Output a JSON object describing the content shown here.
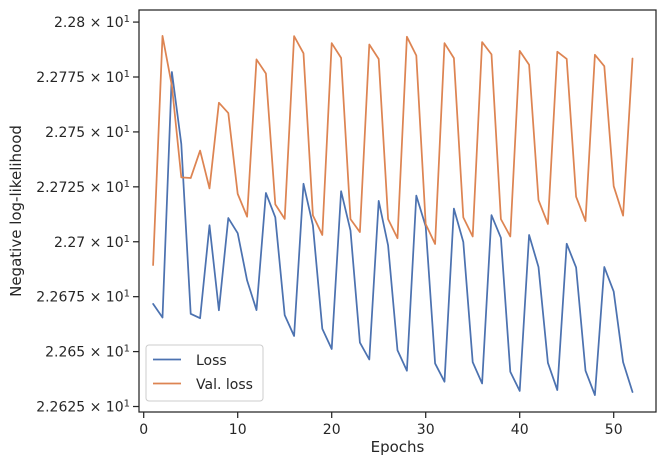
{
  "chart_data": {
    "type": "line",
    "title": "",
    "xlabel": "Epochs",
    "ylabel": "Negative log-likelihood",
    "xlim": [
      -0.5,
      54.5
    ],
    "ylim": [
      22.6225,
      22.8055
    ],
    "grid": false,
    "legend_position": "lower-left",
    "x_ticks": [
      0,
      10,
      20,
      30,
      40,
      50
    ],
    "x_tick_labels": [
      "0",
      "10",
      "20",
      "30",
      "40",
      "50"
    ],
    "y_ticks": [
      22.625,
      22.65,
      22.675,
      22.7,
      22.725,
      22.75,
      22.775,
      22.8
    ],
    "y_tick_labels": [
      {
        "mantissa": "2.2625",
        "base": "10",
        "exp": "1"
      },
      {
        "mantissa": "2.265",
        "base": "10",
        "exp": "1"
      },
      {
        "mantissa": "2.2675",
        "base": "10",
        "exp": "1"
      },
      {
        "mantissa": "2.27",
        "base": "10",
        "exp": "1"
      },
      {
        "mantissa": "2.2725",
        "base": "10",
        "exp": "1"
      },
      {
        "mantissa": "2.275",
        "base": "10",
        "exp": "1"
      },
      {
        "mantissa": "2.2775",
        "base": "10",
        "exp": "1"
      },
      {
        "mantissa": "2.28",
        "base": "10",
        "exp": "1"
      }
    ],
    "x": [
      1,
      2,
      3,
      4,
      5,
      6,
      7,
      8,
      9,
      10,
      11,
      12,
      13,
      14,
      15,
      16,
      17,
      18,
      19,
      20,
      21,
      22,
      23,
      24,
      25,
      26,
      27,
      28,
      29,
      30,
      31,
      32,
      33,
      34,
      35,
      36,
      37,
      38,
      39,
      40,
      41,
      42,
      43,
      44,
      45,
      46,
      47,
      48,
      49,
      50,
      51,
      52
    ],
    "series": [
      {
        "name": "Loss",
        "color": "#4c72b0",
        "values": [
          22.6717,
          22.6655,
          22.7773,
          22.7445,
          22.6672,
          22.6652,
          22.7075,
          22.6688,
          22.7108,
          22.7039,
          22.6824,
          22.6689,
          22.7222,
          22.7111,
          22.6666,
          22.6571,
          22.7264,
          22.7075,
          22.6604,
          22.6512,
          22.723,
          22.7051,
          22.6541,
          22.6464,
          22.7186,
          22.6983,
          22.6506,
          22.6413,
          22.721,
          22.707,
          22.6446,
          22.6363,
          22.7151,
          22.6999,
          22.6452,
          22.6355,
          22.7121,
          22.7018,
          22.6408,
          22.6321,
          22.7031,
          22.6885,
          22.6449,
          22.6325,
          22.6991,
          22.6883,
          22.6413,
          22.6302,
          22.6885,
          22.6773,
          22.6452,
          22.6316
        ]
      },
      {
        "name": "Val. loss",
        "color": "#dd8452",
        "values": [
          22.6894,
          22.7937,
          22.771,
          22.7293,
          22.729,
          22.7415,
          22.7243,
          22.7633,
          22.7586,
          22.7218,
          22.7114,
          22.783,
          22.7766,
          22.717,
          22.7104,
          22.7936,
          22.7858,
          22.712,
          22.7031,
          22.7904,
          22.7837,
          22.7103,
          22.7044,
          22.7898,
          22.7832,
          22.7103,
          22.7016,
          22.7933,
          22.7848,
          22.708,
          22.699,
          22.7904,
          22.7836,
          22.7111,
          22.7024,
          22.7909,
          22.7853,
          22.7103,
          22.7024,
          22.7869,
          22.7806,
          22.719,
          22.7081,
          22.7865,
          22.7832,
          22.7205,
          22.7094,
          22.7851,
          22.7799,
          22.7253,
          22.7119,
          22.7834
        ]
      }
    ]
  }
}
